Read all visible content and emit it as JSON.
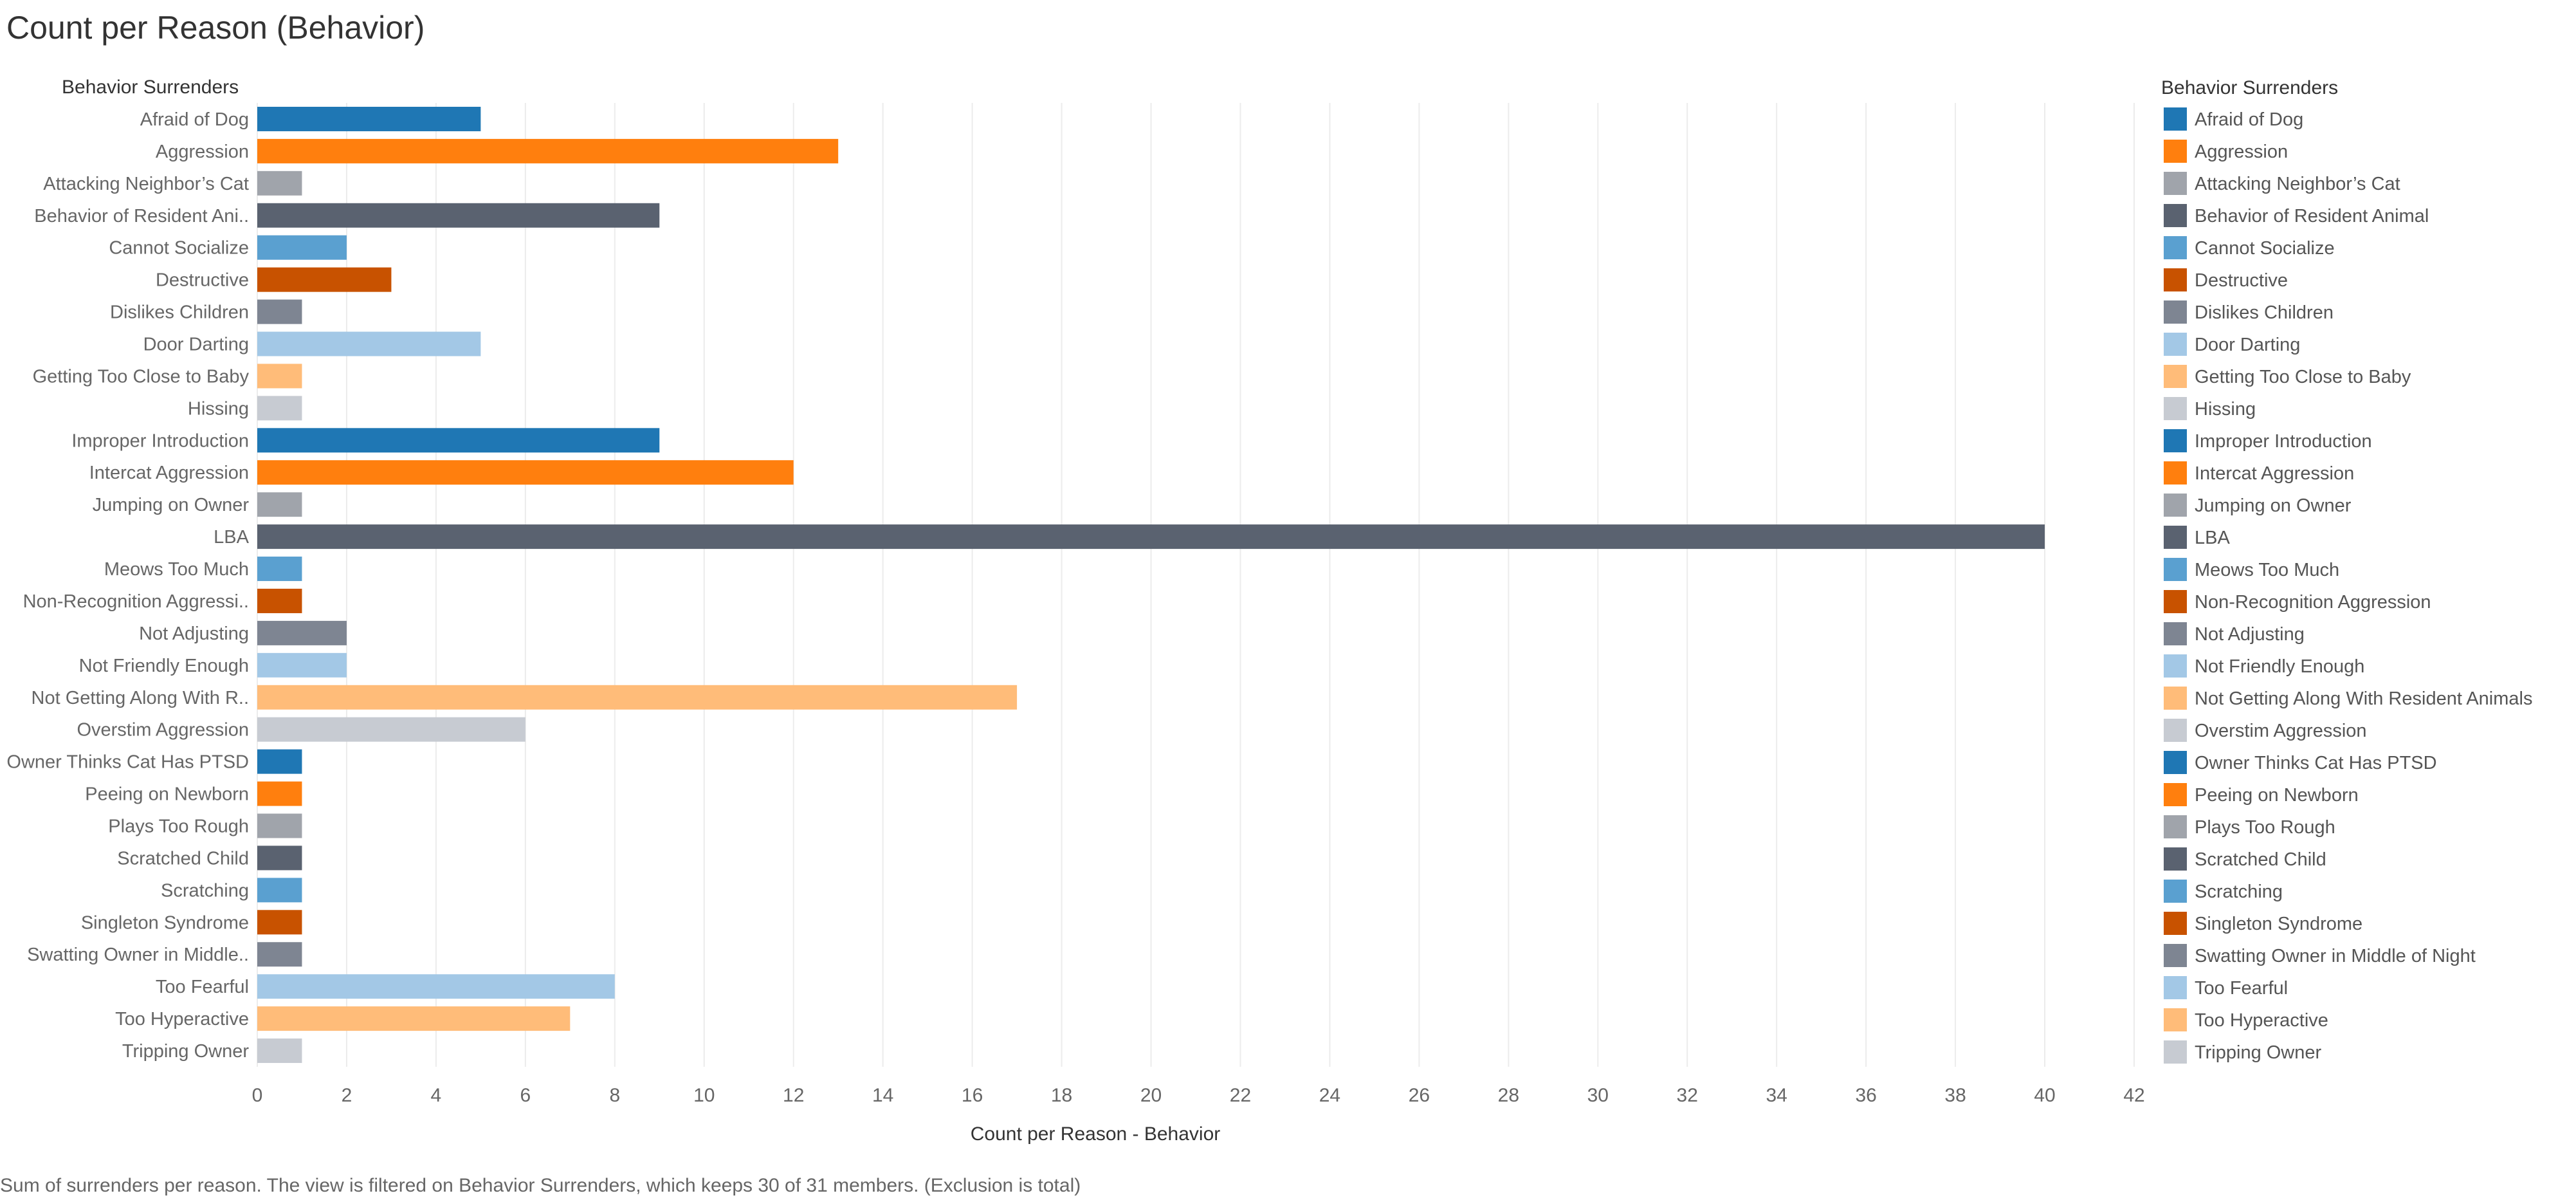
{
  "title": "Count per Reason (Behavior)",
  "footnote": "Sum of surrenders per reason. The view is filtered on Behavior Surrenders, which keeps 30 of 31 members. (Exclusion is total)",
  "colors": {
    "grid": "#ececec",
    "palette": [
      "#1f77b4",
      "#ff7f0e",
      "#a0a4ab",
      "#5a6270",
      "#5aa0d0",
      "#c85200",
      "#7e8592",
      "#a3c8e6",
      "#ffbc79",
      "#c7cbd2"
    ]
  },
  "chart_data": {
    "type": "bar",
    "orientation": "horizontal",
    "title": "Count per Reason (Behavior)",
    "ylabel": "Behavior Surrenders",
    "xlabel": "Count per Reason - Behavior",
    "xlim": [
      0,
      42
    ],
    "xticks": [
      0,
      2,
      4,
      6,
      8,
      10,
      12,
      14,
      16,
      18,
      20,
      22,
      24,
      26,
      28,
      30,
      32,
      34,
      36,
      38,
      40,
      42
    ],
    "grid": true,
    "legend": {
      "title": "Behavior Surrenders",
      "placement": "right",
      "entries": [
        "Afraid of Dog",
        "Aggression",
        "Attacking Neighbor’s Cat",
        "Behavior of Resident Animal",
        "Cannot Socialize",
        "Destructive",
        "Dislikes Children",
        "Door Darting",
        "Getting Too Close to Baby",
        "Hissing",
        "Improper Introduction",
        "Intercat Aggression",
        "Jumping on Owner",
        "LBA",
        "Meows Too Much",
        "Non-Recognition Aggression",
        "Not Adjusting",
        "Not Friendly Enough",
        "Not Getting Along With Resident Animals",
        "Overstim Aggression",
        "Owner Thinks Cat Has PTSD",
        "Peeing on Newborn",
        "Plays Too Rough",
        "Scratched Child",
        "Scratching",
        "Singleton Syndrome",
        "Swatting Owner in Middle of Night",
        "Too Fearful",
        "Too Hyperactive",
        "Tripping Owner"
      ]
    },
    "categories": [
      "Afraid of Dog",
      "Aggression",
      "Attacking Neighbor’s Cat",
      "Behavior of Resident Ani..",
      "Cannot Socialize",
      "Destructive",
      "Dislikes Children",
      "Door Darting",
      "Getting Too Close to Baby",
      "Hissing",
      "Improper Introduction",
      "Intercat Aggression",
      "Jumping on Owner",
      "LBA",
      "Meows Too Much",
      "Non-Recognition Aggressi..",
      "Not Adjusting",
      "Not Friendly Enough",
      "Not Getting Along With R..",
      "Overstim Aggression",
      "Owner Thinks Cat Has PTSD",
      "Peeing on Newborn",
      "Plays Too Rough",
      "Scratched Child",
      "Scratching",
      "Singleton Syndrome",
      "Swatting Owner in Middle..",
      "Too Fearful",
      "Too Hyperactive",
      "Tripping Owner"
    ],
    "values": [
      5,
      13,
      1,
      9,
      2,
      3,
      1,
      5,
      1,
      1,
      9,
      12,
      1,
      40,
      1,
      1,
      2,
      2,
      17,
      6,
      1,
      1,
      1,
      1,
      1,
      1,
      1,
      8,
      7,
      1
    ]
  }
}
